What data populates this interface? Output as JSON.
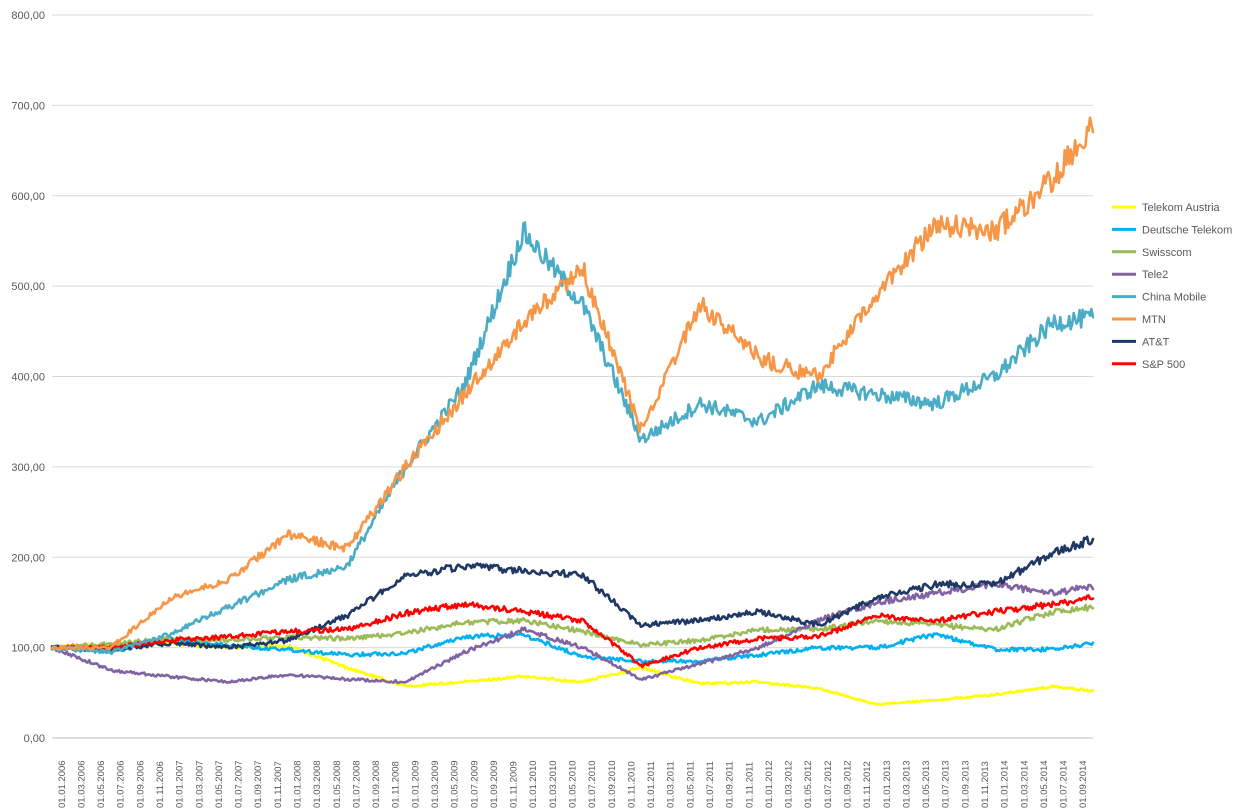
{
  "chart_data": {
    "type": "line",
    "title": "",
    "xlabel": "",
    "ylabel": "",
    "ylim": [
      0,
      800
    ],
    "y_ticks": [
      "0,00",
      "100,00",
      "200,00",
      "300,00",
      "400,00",
      "500,00",
      "600,00",
      "700,00",
      "800,00"
    ],
    "x_tick_labels": [
      "01.01.2006",
      "01.03.2006",
      "01.05.2006",
      "01.07.2006",
      "01.09.2006",
      "01.11.2006",
      "01.01.2007",
      "01.03.2007",
      "01.05.2007",
      "01.07.2007",
      "01.09.2007",
      "01.11.2007",
      "01.01.2008",
      "01.03.2008",
      "01.05.2008",
      "01.07.2008",
      "01.09.2008",
      "01.11.2008",
      "01.01.2009",
      "01.03.2009",
      "01.05.2009",
      "01.07.2009",
      "01.09.2009",
      "01.11.2009",
      "01.01.2010",
      "01.03.2010",
      "01.05.2010",
      "01.07.2010",
      "01.09.2010",
      "01.11.2010",
      "01.01.2011",
      "01.03.2011",
      "01.05.2011",
      "01.07.2011",
      "01.09.2011",
      "01.11.2011",
      "01.01.2012",
      "01.03.2012",
      "01.05.2012",
      "01.07.2012",
      "01.09.2012",
      "01.11.2012",
      "01.01.2013",
      "01.03.2013",
      "01.05.2013",
      "01.07.2013",
      "01.09.2013",
      "01.11.2013",
      "01.01.2014",
      "01.03.2014",
      "01.05.2014",
      "01.07.2014",
      "01.09.2014"
    ],
    "legend_position": "right",
    "grid": true,
    "x_dates": [
      "2006-01",
      "2006-07",
      "2007-01",
      "2007-07",
      "2008-01",
      "2008-07",
      "2009-01",
      "2009-07",
      "2010-01",
      "2010-07",
      "2011-01",
      "2011-07",
      "2012-01",
      "2012-07",
      "2013-01",
      "2013-07",
      "2014-01",
      "2014-07",
      "2014-11"
    ],
    "series": [
      {
        "name": "Telekom Austria",
        "color": "#FFFF00",
        "values": [
          100,
          103,
          105,
          100,
          102,
          78,
          57,
          62,
          68,
          62,
          78,
          60,
          62,
          55,
          37,
          42,
          48,
          57,
          52
        ]
      },
      {
        "name": "Deutsche Telekom",
        "color": "#00B0F0",
        "values": [
          100,
          95,
          110,
          102,
          98,
          92,
          94,
          112,
          114,
          90,
          85,
          85,
          92,
          100,
          100,
          115,
          98,
          98,
          105
        ]
      },
      {
        "name": "Swisscom",
        "color": "#9BBB59",
        "values": [
          100,
          104,
          110,
          108,
          112,
          110,
          116,
          128,
          130,
          118,
          103,
          108,
          120,
          120,
          130,
          125,
          120,
          140,
          145
        ]
      },
      {
        "name": "Tele2",
        "color": "#8064A2",
        "values": [
          100,
          75,
          68,
          62,
          70,
          65,
          62,
          95,
          120,
          100,
          65,
          82,
          100,
          130,
          150,
          160,
          170,
          160,
          168
        ]
      },
      {
        "name": "China Mobile",
        "color": "#4BACC6",
        "values": [
          100,
          95,
          115,
          145,
          175,
          190,
          300,
          390,
          560,
          480,
          330,
          370,
          350,
          390,
          380,
          370,
          400,
          460,
          465
        ]
      },
      {
        "name": "MTN",
        "color": "#F79646",
        "values": [
          100,
          100,
          155,
          175,
          225,
          210,
          300,
          380,
          460,
          520,
          340,
          480,
          420,
          400,
          490,
          570,
          560,
          620,
          680
        ]
      },
      {
        "name": "AT&T",
        "color": "#1F3864",
        "values": [
          100,
          98,
          105,
          100,
          108,
          135,
          180,
          190,
          185,
          180,
          125,
          130,
          140,
          125,
          155,
          170,
          170,
          205,
          220
        ]
      },
      {
        "name": "S&P 500",
        "color": "#FF0000",
        "values": [
          100,
          100,
          108,
          112,
          118,
          120,
          138,
          148,
          140,
          130,
          80,
          100,
          110,
          112,
          135,
          130,
          140,
          148,
          155
        ]
      }
    ]
  }
}
